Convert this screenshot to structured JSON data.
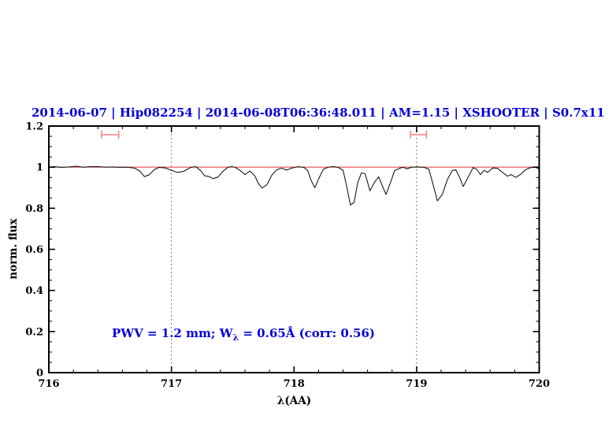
{
  "title": {
    "text": "2014-06-07 | Hip082254 | 2014-06-08T06:36:48.011 | AM=1.15 | XSHOOTER | S0.7x11"
  },
  "annotation": {
    "prefix": "PWV = 1.2 mm; W",
    "sub": "λ",
    "suffix": " = 0.65Å (corr: 0.56)"
  },
  "colors": {
    "title_text": "#0000d8",
    "annotation_text": "#0000d8",
    "spectrum_line": "#1a1a1a",
    "reference_line": "#e03232",
    "error_marker": "#f08a8a",
    "dotted_line": "#555555",
    "frame": "#000000"
  },
  "chart_data": {
    "type": "line",
    "title": "2014-06-07 | Hip082254 | 2014-06-08T06:36:48.011 | AM=1.15 | XSHOOTER | S0.7x11",
    "xlabel": "λ(AA)",
    "ylabel": "norm. flux",
    "xlim": [
      716,
      720
    ],
    "ylim": [
      0,
      1.2
    ],
    "x_ticks": [
      716,
      717,
      718,
      719,
      720
    ],
    "y_ticks": [
      0,
      0.2,
      0.4,
      0.6,
      0.8,
      1,
      1.2
    ],
    "x_minor_step": 0.2,
    "y_minor_step": 0.05,
    "grid": false,
    "vertical_dotted_lines": [
      717,
      719
    ],
    "reference_line_y": 1.0,
    "error_markers": [
      {
        "x_min": 716.43,
        "x_max": 716.57,
        "y": 1.158,
        "cap_half_height": 0.02
      },
      {
        "x_min": 718.95,
        "x_max": 719.08,
        "y": 1.158,
        "cap_half_height": 0.02
      }
    ],
    "series": [
      {
        "name": "normalized spectrum",
        "points": [
          [
            716.0,
            1.0
          ],
          [
            716.05,
            1.002
          ],
          [
            716.1,
            0.999
          ],
          [
            716.16,
            1.001
          ],
          [
            716.22,
            1.004
          ],
          [
            716.28,
            1.0
          ],
          [
            716.34,
            1.002
          ],
          [
            716.4,
            1.003
          ],
          [
            716.46,
            1.0
          ],
          [
            716.52,
            1.001
          ],
          [
            716.58,
            0.999
          ],
          [
            716.64,
            1.0
          ],
          [
            716.7,
            0.995
          ],
          [
            716.74,
            0.982
          ],
          [
            716.78,
            0.954
          ],
          [
            716.82,
            0.963
          ],
          [
            716.86,
            0.988
          ],
          [
            716.9,
            0.999
          ],
          [
            716.95,
            0.996
          ],
          [
            717.0,
            0.985
          ],
          [
            717.05,
            0.974
          ],
          [
            717.1,
            0.98
          ],
          [
            717.16,
            0.999
          ],
          [
            717.2,
            1.002
          ],
          [
            717.24,
            0.982
          ],
          [
            717.27,
            0.958
          ],
          [
            717.31,
            0.954
          ],
          [
            717.34,
            0.944
          ],
          [
            717.38,
            0.952
          ],
          [
            717.42,
            0.98
          ],
          [
            717.46,
            0.999
          ],
          [
            717.49,
            1.003
          ],
          [
            717.52,
            0.999
          ],
          [
            717.56,
            0.984
          ],
          [
            717.6,
            0.964
          ],
          [
            717.64,
            0.981
          ],
          [
            717.68,
            0.958
          ],
          [
            717.71,
            0.92
          ],
          [
            717.74,
            0.898
          ],
          [
            717.78,
            0.915
          ],
          [
            717.82,
            0.962
          ],
          [
            717.86,
            0.988
          ],
          [
            717.9,
            0.995
          ],
          [
            717.94,
            0.986
          ],
          [
            717.98,
            0.995
          ],
          [
            718.03,
            1.002
          ],
          [
            718.08,
            0.999
          ],
          [
            718.11,
            0.985
          ],
          [
            718.14,
            0.935
          ],
          [
            718.17,
            0.9
          ],
          [
            718.2,
            0.942
          ],
          [
            718.24,
            0.99
          ],
          [
            718.28,
            1.0
          ],
          [
            718.32,
            1.003
          ],
          [
            718.36,
            0.999
          ],
          [
            718.4,
            0.985
          ],
          [
            718.43,
            0.905
          ],
          [
            718.46,
            0.816
          ],
          [
            718.49,
            0.828
          ],
          [
            718.52,
            0.925
          ],
          [
            718.55,
            0.972
          ],
          [
            718.58,
            0.968
          ],
          [
            718.62,
            0.885
          ],
          [
            718.655,
            0.925
          ],
          [
            718.69,
            0.953
          ],
          [
            718.72,
            0.91
          ],
          [
            718.75,
            0.867
          ],
          [
            718.79,
            0.93
          ],
          [
            718.82,
            0.983
          ],
          [
            718.86,
            0.994
          ],
          [
            718.89,
            1.0
          ],
          [
            718.92,
            0.992
          ],
          [
            718.96,
            1.0
          ],
          [
            719.01,
            1.001
          ],
          [
            719.06,
            0.999
          ],
          [
            719.1,
            0.99
          ],
          [
            719.13,
            0.925
          ],
          [
            719.17,
            0.836
          ],
          [
            719.21,
            0.868
          ],
          [
            719.25,
            0.938
          ],
          [
            719.29,
            0.983
          ],
          [
            719.32,
            0.987
          ],
          [
            719.35,
            0.952
          ],
          [
            719.38,
            0.906
          ],
          [
            719.42,
            0.95
          ],
          [
            719.46,
            0.997
          ],
          [
            719.49,
            0.99
          ],
          [
            719.52,
            0.964
          ],
          [
            719.55,
            0.984
          ],
          [
            719.58,
            0.974
          ],
          [
            719.62,
            0.996
          ],
          [
            719.66,
            0.994
          ],
          [
            719.7,
            0.975
          ],
          [
            719.74,
            0.956
          ],
          [
            719.77,
            0.964
          ],
          [
            719.81,
            0.95
          ],
          [
            719.85,
            0.966
          ],
          [
            719.89,
            0.988
          ],
          [
            719.93,
            0.998
          ],
          [
            719.97,
            0.999
          ],
          [
            720.0,
            0.991
          ]
        ]
      }
    ]
  }
}
